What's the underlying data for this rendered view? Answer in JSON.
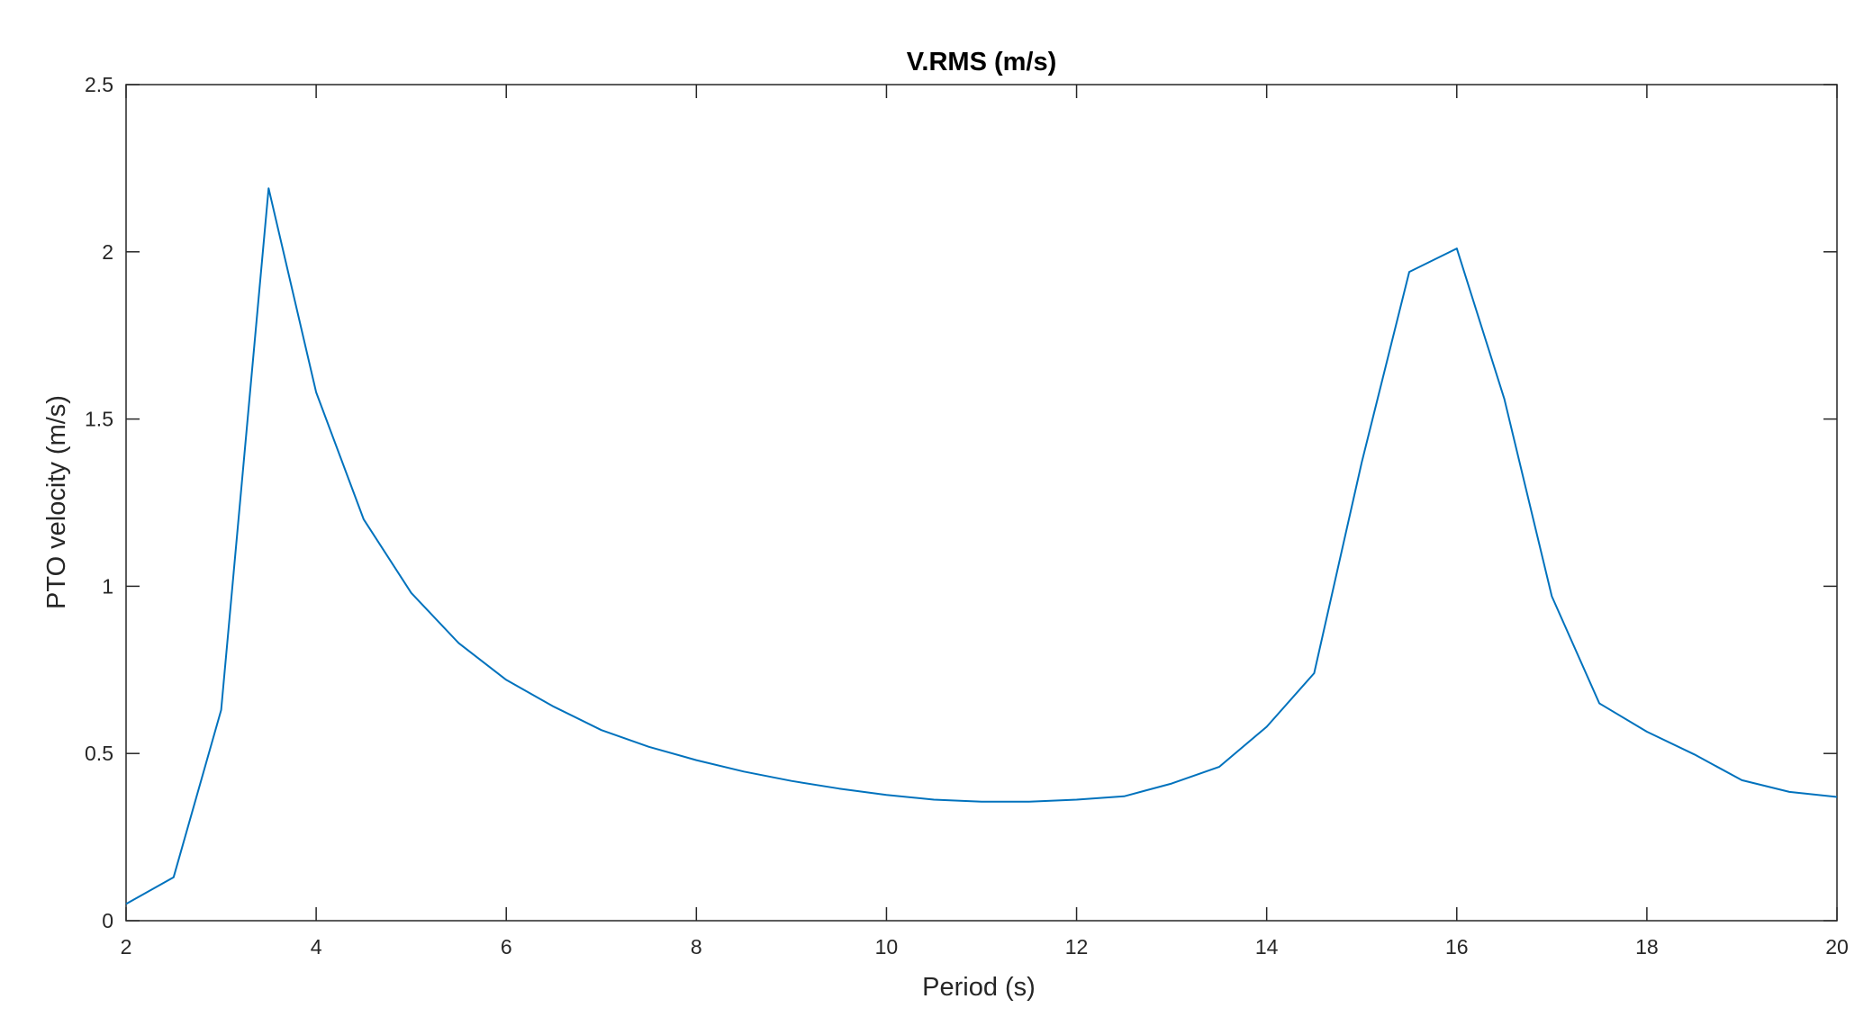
{
  "chart_data": {
    "type": "line",
    "title": "V.RMS (m/s)",
    "xlabel": "Period (s)",
    "ylabel": "PTO velocity (m/s)",
    "xlim": [
      2,
      20
    ],
    "ylim": [
      0,
      2.5
    ],
    "x_ticks": [
      2,
      4,
      6,
      8,
      10,
      12,
      14,
      16,
      18,
      20
    ],
    "y_ticks": [
      0,
      0.5,
      1,
      1.5,
      2,
      2.5
    ],
    "x_tick_labels": [
      "2",
      "4",
      "6",
      "8",
      "10",
      "12",
      "14",
      "16",
      "18",
      "20"
    ],
    "y_tick_labels": [
      "0",
      "0.5",
      "1",
      "1.5",
      "2",
      "2.5"
    ],
    "grid": false,
    "series": [
      {
        "color": "#0072bd",
        "x": [
          2,
          2.5,
          3,
          3.5,
          4,
          4.5,
          5,
          5.5,
          6,
          6.5,
          7,
          7.5,
          8,
          8.5,
          9,
          9.5,
          10,
          10.5,
          11,
          11.5,
          12,
          12.5,
          13,
          13.5,
          14,
          14.5,
          15,
          15.5,
          16,
          16.5,
          17,
          17.5,
          18,
          18.5,
          19,
          19.5,
          20
        ],
        "y": [
          0.05,
          0.13,
          0.63,
          2.19,
          1.58,
          1.2,
          0.98,
          0.83,
          0.72,
          0.64,
          0.57,
          0.52,
          0.48,
          0.446,
          0.418,
          0.395,
          0.376,
          0.362,
          0.356,
          0.356,
          0.362,
          0.372,
          0.41,
          0.46,
          0.58,
          0.74,
          1.37,
          1.94,
          2.01,
          1.56,
          0.97,
          0.65,
          0.565,
          0.497,
          0.42,
          0.385,
          0.37
        ]
      }
    ]
  }
}
